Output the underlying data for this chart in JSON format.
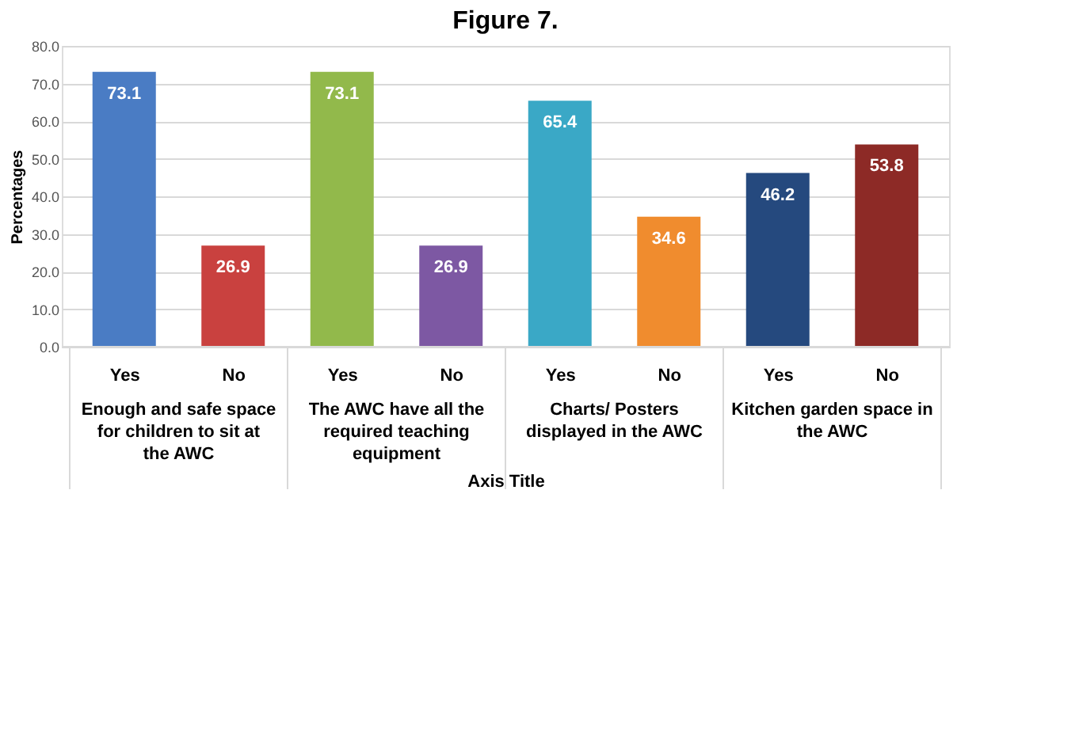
{
  "chart_data": {
    "type": "bar",
    "title": "Figure 7.",
    "xlabel": "Axis Title",
    "ylabel": "Percentages",
    "categories": [
      "Yes",
      "No",
      "Yes",
      "No",
      "Yes",
      "No",
      "Yes",
      "No"
    ],
    "values": [
      73.1,
      26.9,
      73.1,
      26.9,
      65.4,
      34.6,
      46.2,
      53.8
    ],
    "colors": [
      "#4a7cc4",
      "#c9413f",
      "#92b94b",
      "#7d58a3",
      "#3aa8c6",
      "#f08c2e",
      "#25497e",
      "#8d2a26"
    ],
    "annotations": [
      "Enough and safe space for children to sit at the AWC",
      "The AWC have all the required teaching equipment",
      "Charts/ Posters displayed in the AWC",
      "Kitchen garden space in the AWC"
    ],
    "data_labels": true,
    "grid": "y",
    "ylim": [
      0,
      80
    ],
    "yticks": [
      {
        "value": 0,
        "label": "0.0"
      },
      {
        "value": 10,
        "label": "10.0"
      },
      {
        "value": 20,
        "label": "20.0"
      },
      {
        "value": 30,
        "label": "30.0"
      },
      {
        "value": 40,
        "label": "40.0"
      },
      {
        "value": 50,
        "label": "50.0"
      },
      {
        "value": 60,
        "label": "60.0"
      },
      {
        "value": 70,
        "label": "70.0"
      },
      {
        "value": 80,
        "label": "80.0"
      }
    ]
  }
}
